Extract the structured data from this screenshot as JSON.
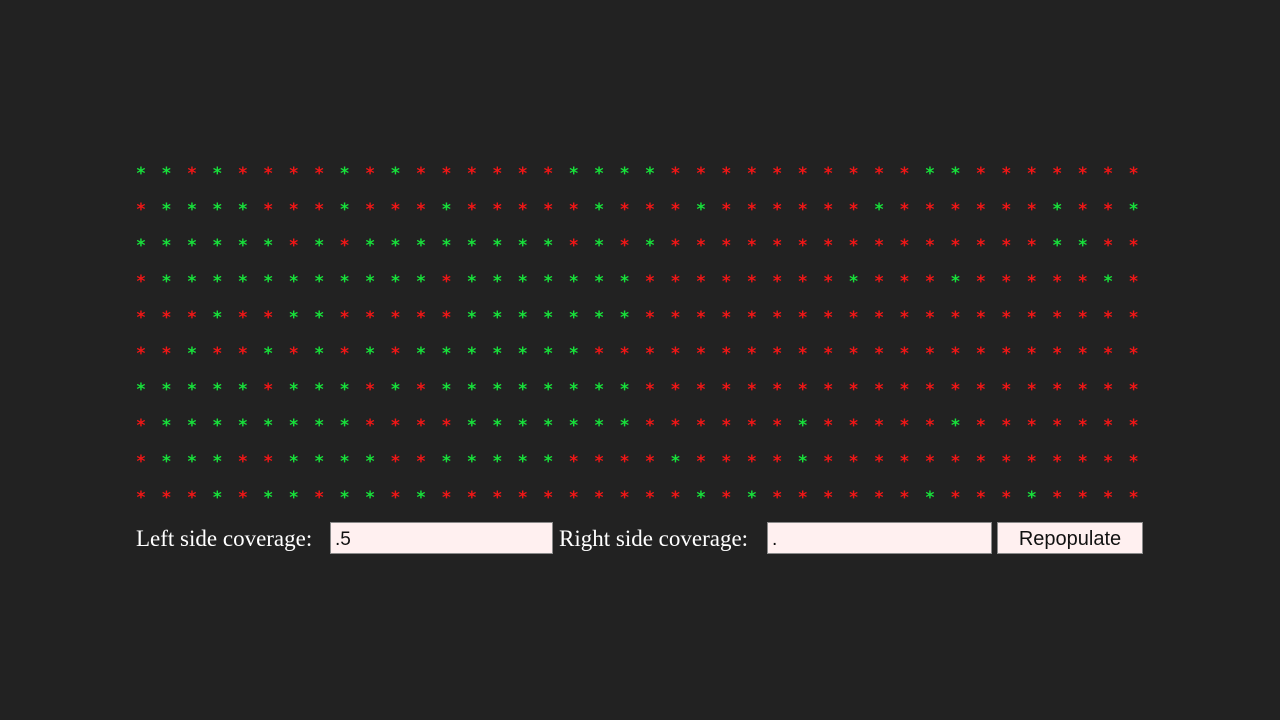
{
  "grid": {
    "symbol": "*",
    "colors": {
      "g": "#17e03a",
      "r": "#f01616"
    },
    "rows": [
      "ggrgrrrrgrgrrrrrrggggrrrrrrrrrrggrrrrrrr",
      "rggggrrrgrrrgrrrrrgrrrgrrrrrrgrrrrrrgrrg",
      "ggggggrgrggggggggrgrgrrrrrrrrrrrrrrrggrr",
      "rgggggggggggrgggggggrrrrrrrrgrrrgrrrrrgr",
      "rrrgrrggrrrrrgggggggrrrrrrrrrrrrrrrrrrrr",
      "rrgrrgrgrgrgggggggrrrrrrrrrrrrrrrrrrrrrr",
      "gggggrgggrgrggggggggrrrrrrrrrrrrrrrrrrrr",
      "rggggggggrrrrgggggggrrrrrrgrrrrrgrrrrrrr",
      "rgggrrggggrrgggggrrrrgrrrrgrrrrrrrrrrrrr",
      "rrrgrggrggrgrrrrrrrrrrgrgrrrrrrgrrrgrrrr"
    ]
  },
  "controls": {
    "left_label": "Left side coverage:",
    "left_value": ".5",
    "right_label": "Right side coverage:",
    "right_value": ".",
    "button": "Repopulate"
  }
}
